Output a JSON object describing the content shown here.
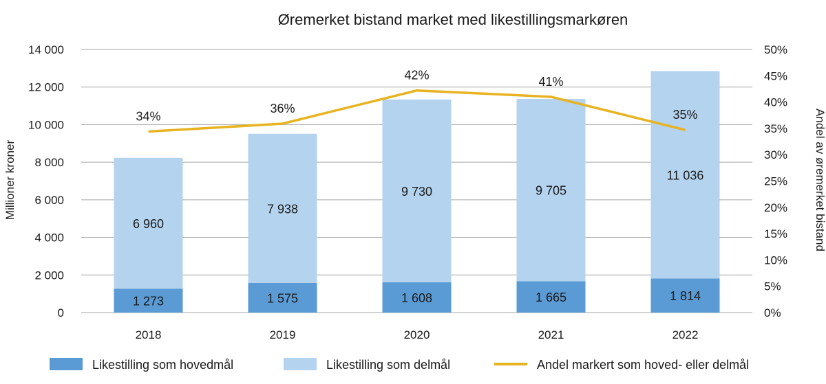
{
  "chart_data": {
    "type": "bar",
    "stacked": true,
    "title": "Øremerket bistand market med likestillingsmarkøren",
    "ylabel": "Millioner kroner",
    "y2label": "Andel av øremerket bistand",
    "ylim": [
      0,
      14000
    ],
    "y2lim": [
      0,
      50
    ],
    "grid": true,
    "legend_position": "bottom",
    "categories": [
      "2018",
      "2019",
      "2020",
      "2021",
      "2022"
    ],
    "yticks": [
      "0",
      "2 000",
      "4 000",
      "6 000",
      "8 000",
      "10 000",
      "12 000",
      "14 000"
    ],
    "y2ticks": [
      "0%",
      "5%",
      "10%",
      "15%",
      "20%",
      "25%",
      "30%",
      "35%",
      "40%",
      "45%",
      "50%"
    ],
    "series": [
      {
        "name": "Likestilling som hovedmål",
        "kind": "bar",
        "color": "#5b9bd5",
        "values": [
          1273,
          1575,
          1608,
          1665,
          1814
        ],
        "labels": [
          "1 273",
          "1 575",
          "1 608",
          "1 665",
          "1 814"
        ]
      },
      {
        "name": "Likestilling som delmål",
        "kind": "bar",
        "color": "#b4d3ef",
        "values": [
          6960,
          7938,
          9730,
          9705,
          11036
        ],
        "labels": [
          "6 960",
          "7 938",
          "9 730",
          "9 705",
          "11 036"
        ]
      },
      {
        "name": "Andel markert som hoved- eller delmål",
        "kind": "line",
        "axis": "right",
        "color": "#e8b321",
        "values": [
          34.4,
          35.9,
          42.2,
          41.0,
          34.7
        ],
        "labels": [
          "34%",
          "36%",
          "42%",
          "41%",
          "35%"
        ]
      }
    ]
  }
}
